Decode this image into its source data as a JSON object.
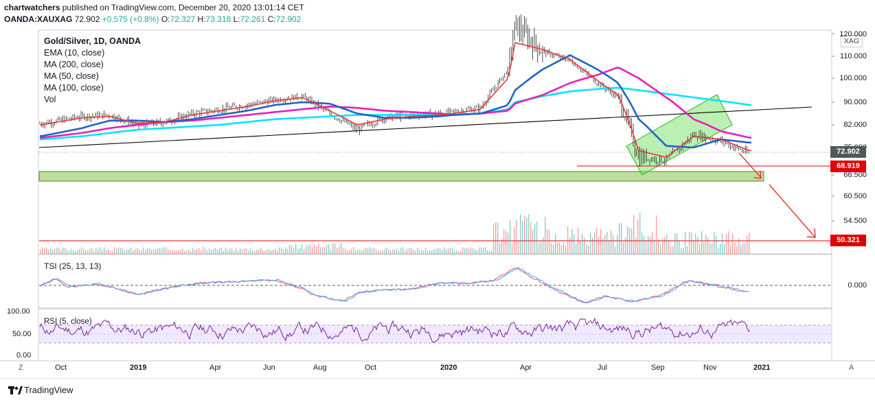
{
  "header": {
    "publisher": "chartwatchers",
    "published_text": "published on TradingView.com, December 20, 2020 13:01:14 CET",
    "symbol": "OANDA:XAUXAG",
    "last": "72.902",
    "change": "+0.575 (+0.8%)",
    "o_label": "O:",
    "o": "72.327",
    "h_label": "H:",
    "h": "73.318",
    "l_label": "L:",
    "l": "72.261",
    "c_label": "C:",
    "c": "72.902"
  },
  "legend": {
    "title": "Gold/Silver, 1D, OANDA",
    "ema10": "EMA (10, close)",
    "ma200": "MA (200, close)",
    "ma50": "MA (50, close)",
    "ma100": "MA (100, close)",
    "vol": "Vol"
  },
  "unit_badge": "XAG",
  "price_axis": [
    "120.000",
    "110.000",
    "100.000",
    "90.000",
    "82.000",
    "75.000",
    "66.500",
    "60.500",
    "54.500"
  ],
  "price_tags": {
    "last": "72.902",
    "resistance": "68.919",
    "target": "50.321"
  },
  "tsi": {
    "title": "TSI (25, 13, 13)",
    "zero_label": "0.000"
  },
  "rsi": {
    "title": "RSI (5, close)",
    "levels": [
      "100.00",
      "50.00",
      "0.00"
    ]
  },
  "time_axis": [
    "Oct",
    "2019",
    "Apr",
    "Jun",
    "Aug",
    "Oct",
    "2020",
    "Apr",
    "Jul",
    "Sep",
    "Nov",
    "2021"
  ],
  "footer": {
    "brand": "TradingView",
    "left_btn": "Z",
    "right_btn": "A"
  },
  "colors": {
    "ema10": "#e53935",
    "ma200": "#e91eb5",
    "ma50": "#1e63c8",
    "ma100": "#00e5ff",
    "up": "#26a69a",
    "down": "#ef5350",
    "tag_red": "#e00000",
    "tag_gray": "#4d5a5a",
    "zone": "#8bc34a"
  },
  "chart_data": {
    "type": "line",
    "title": "Gold/Silver, 1D, OANDA",
    "x": [
      "2018-10",
      "2018-11",
      "2018-12",
      "2019-01",
      "2019-02",
      "2019-03",
      "2019-04",
      "2019-05",
      "2019-06",
      "2019-07",
      "2019-08",
      "2019-09",
      "2019-10",
      "2019-11",
      "2019-12",
      "2020-01",
      "2020-02",
      "2020-03",
      "2020-03-18",
      "2020-04",
      "2020-05",
      "2020-06",
      "2020-07",
      "2020-08",
      "2020-09",
      "2020-10",
      "2020-11",
      "2020-12-18"
    ],
    "series": [
      {
        "name": "Gold/Silver",
        "values": [
          82.5,
          85.0,
          85.5,
          82.0,
          83.0,
          86.0,
          87.5,
          89.0,
          91.0,
          92.5,
          86.0,
          80.5,
          84.5,
          85.5,
          86.0,
          86.5,
          88.0,
          104.0,
          124.0,
          112.0,
          108.0,
          98.0,
          92.0,
          72.0,
          71.0,
          79.0,
          77.0,
          72.9
        ]
      },
      {
        "name": "EMA (10, close)",
        "values": [
          82.0,
          84.5,
          85.0,
          82.5,
          83.0,
          85.5,
          87.0,
          88.5,
          90.5,
          92.0,
          87.0,
          82.0,
          84.0,
          85.0,
          85.5,
          86.0,
          87.5,
          100.0,
          116.0,
          113.0,
          108.5,
          99.0,
          93.0,
          74.0,
          72.0,
          78.5,
          77.5,
          74.0
        ]
      },
      {
        "name": "MA (50, close)",
        "values": [
          78.5,
          81.0,
          83.5,
          83.5,
          83.0,
          84.0,
          85.5,
          87.0,
          89.0,
          90.0,
          89.5,
          86.0,
          84.5,
          84.5,
          85.0,
          85.5,
          86.0,
          89.0,
          95.0,
          104.0,
          110.5,
          104.0,
          98.0,
          84.0,
          75.5,
          75.0,
          77.5,
          76.5
        ]
      },
      {
        "name": "MA (100, close)",
        "values": [
          78.0,
          79.5,
          81.0,
          82.0,
          83.0,
          83.5,
          84.5,
          85.5,
          86.5,
          87.5,
          88.5,
          88.0,
          87.0,
          86.5,
          86.0,
          85.5,
          86.0,
          87.0,
          89.5,
          93.0,
          98.0,
          101.5,
          105.0,
          100.0,
          92.0,
          84.0,
          80.0,
          78.0
        ]
      },
      {
        "name": "MA (200, close)",
        "values": [
          77.5,
          78.5,
          79.5,
          80.5,
          81.0,
          81.5,
          82.0,
          83.0,
          84.0,
          84.5,
          85.0,
          85.5,
          85.5,
          85.5,
          85.5,
          85.5,
          86.0,
          87.5,
          90.0,
          92.5,
          94.5,
          95.5,
          96.0,
          95.0,
          93.5,
          92.0,
          90.5,
          89.0
        ]
      }
    ],
    "ylim": [
      50,
      122
    ],
    "horizontal_levels": [
      68.919,
      50.321
    ],
    "zone": [
      65.8,
      67.7
    ],
    "tsi_zero": 0.0,
    "rsi_range": [
      0,
      100
    ],
    "rsi_band": [
      30,
      70
    ]
  }
}
